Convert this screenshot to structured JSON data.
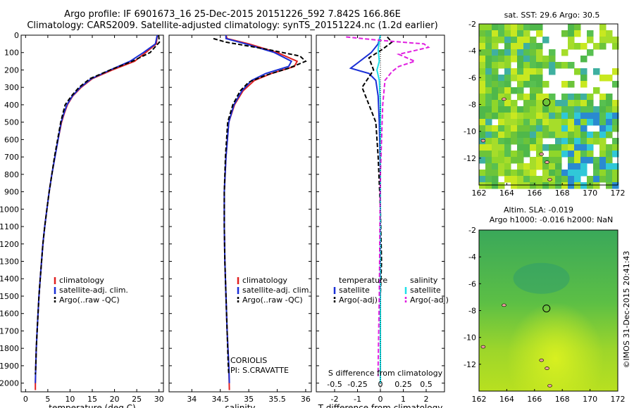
{
  "titles": {
    "line1": "Argo profile: IF 6901673_16 25-Dec-2015 20151226_592 7.842S 166.86E",
    "line2": "Climatology: CARS2009. Satellite-adjusted climatology: synTS_20151224.nc (1.2d earlier)"
  },
  "colors": {
    "climatology": "#e02020",
    "satellite": "#1a2fd6",
    "argo": "#000000",
    "sal_satellite": "#20e0e8",
    "sal_argo": "#e020e0"
  },
  "chart_data": [
    {
      "type": "line",
      "xlabel": "temperature (deg C)",
      "ylim": [
        2050,
        0
      ],
      "xlim": [
        -1,
        31
      ],
      "xticks": [
        0,
        5,
        10,
        15,
        20,
        25,
        30
      ],
      "yticks": [
        0,
        100,
        200,
        300,
        400,
        500,
        600,
        700,
        800,
        900,
        1000,
        1100,
        1200,
        1300,
        1400,
        1500,
        1600,
        1700,
        1800,
        1900,
        2000
      ],
      "legend": [
        "climatology",
        "satellite-adj. clim.",
        "Argo(..raw -QC)"
      ],
      "series": [
        {
          "name": "climatology",
          "color": "#e02020",
          "dash": "",
          "points": [
            [
              29.6,
              0
            ],
            [
              29.4,
              50
            ],
            [
              27.0,
              100
            ],
            [
              24.5,
              150
            ],
            [
              19.5,
              200
            ],
            [
              15.0,
              250
            ],
            [
              12.5,
              300
            ],
            [
              10.6,
              350
            ],
            [
              9.4,
              400
            ],
            [
              8.7,
              450
            ],
            [
              8.1,
              500
            ],
            [
              7.3,
              600
            ],
            [
              6.6,
              700
            ],
            [
              5.9,
              800
            ],
            [
              5.3,
              900
            ],
            [
              4.8,
              1000
            ],
            [
              4.3,
              1100
            ],
            [
              3.9,
              1200
            ],
            [
              3.6,
              1300
            ],
            [
              3.3,
              1400
            ],
            [
              3.0,
              1500
            ],
            [
              2.8,
              1600
            ],
            [
              2.6,
              1700
            ],
            [
              2.4,
              1800
            ],
            [
              2.3,
              1900
            ],
            [
              2.2,
              2000
            ],
            [
              2.2,
              2040
            ]
          ]
        },
        {
          "name": "satellite",
          "color": "#1a2fd6",
          "dash": "",
          "points": [
            [
              29.6,
              0
            ],
            [
              29.2,
              50
            ],
            [
              26.5,
              100
            ],
            [
              23.5,
              150
            ],
            [
              19.0,
              200
            ],
            [
              14.8,
              250
            ],
            [
              12.3,
              300
            ],
            [
              10.5,
              350
            ],
            [
              9.3,
              400
            ],
            [
              8.6,
              450
            ],
            [
              8.0,
              500
            ],
            [
              7.3,
              600
            ],
            [
              6.6,
              700
            ],
            [
              5.9,
              800
            ],
            [
              5.3,
              900
            ],
            [
              4.8,
              1000
            ],
            [
              4.3,
              1100
            ],
            [
              3.9,
              1200
            ],
            [
              3.6,
              1300
            ],
            [
              3.3,
              1400
            ],
            [
              3.0,
              1500
            ],
            [
              2.8,
              1600
            ],
            [
              2.6,
              1700
            ],
            [
              2.4,
              1800
            ],
            [
              2.3,
              1900
            ],
            [
              2.2,
              2000
            ]
          ]
        },
        {
          "name": "argo",
          "color": "#000000",
          "dash": "6,3",
          "points": [
            [
              29.9,
              0
            ],
            [
              30.1,
              40
            ],
            [
              28.0,
              100
            ],
            [
              24.0,
              150
            ],
            [
              19.0,
              200
            ],
            [
              14.5,
              250
            ],
            [
              12.0,
              300
            ],
            [
              10.3,
              350
            ],
            [
              8.9,
              400
            ],
            [
              8.4,
              450
            ],
            [
              7.9,
              500
            ],
            [
              7.2,
              600
            ],
            [
              6.5,
              700
            ],
            [
              5.9,
              800
            ],
            [
              5.3,
              900
            ],
            [
              4.8,
              1000
            ],
            [
              4.3,
              1100
            ],
            [
              3.9,
              1200
            ],
            [
              3.6,
              1300
            ],
            [
              3.3,
              1400
            ],
            [
              3.0,
              1500
            ],
            [
              2.8,
              1600
            ],
            [
              2.6,
              1700
            ],
            [
              2.4,
              1800
            ],
            [
              2.3,
              1900
            ],
            [
              2.2,
              1950
            ]
          ]
        }
      ]
    },
    {
      "type": "line",
      "xlabel": "salinity",
      "ylim": [
        2050,
        0
      ],
      "xlim": [
        33.6,
        36.1
      ],
      "xticks": [
        34,
        34.5,
        35,
        35.5,
        36
      ],
      "legend": [
        "climatology",
        "satellite-adj. clim.",
        "Argo(..raw -QC)"
      ],
      "annotation": [
        "CORIOLIS",
        "PI: S.CRAVATTE"
      ],
      "series": [
        {
          "name": "climatology",
          "color": "#e02020",
          "dash": "",
          "points": [
            [
              34.6,
              0
            ],
            [
              34.62,
              20
            ],
            [
              35.0,
              50
            ],
            [
              35.5,
              100
            ],
            [
              35.85,
              150
            ],
            [
              35.8,
              180
            ],
            [
              35.4,
              220
            ],
            [
              35.1,
              260
            ],
            [
              34.9,
              320
            ],
            [
              34.75,
              400
            ],
            [
              34.65,
              500
            ],
            [
              34.6,
              700
            ],
            [
              34.57,
              900
            ],
            [
              34.57,
              1100
            ],
            [
              34.58,
              1300
            ],
            [
              34.6,
              1500
            ],
            [
              34.62,
              1700
            ],
            [
              34.65,
              1900
            ],
            [
              34.66,
              2040
            ]
          ]
        },
        {
          "name": "satellite",
          "color": "#1a2fd6",
          "dash": "",
          "points": [
            [
              34.6,
              0
            ],
            [
              34.6,
              20
            ],
            [
              34.95,
              50
            ],
            [
              35.45,
              100
            ],
            [
              35.75,
              150
            ],
            [
              35.7,
              180
            ],
            [
              35.3,
              220
            ],
            [
              35.05,
              260
            ],
            [
              34.88,
              320
            ],
            [
              34.74,
              400
            ],
            [
              34.65,
              500
            ],
            [
              34.6,
              700
            ],
            [
              34.57,
              900
            ],
            [
              34.57,
              1100
            ],
            [
              34.58,
              1300
            ],
            [
              34.6,
              1500
            ],
            [
              34.62,
              1700
            ],
            [
              34.65,
              1900
            ],
            [
              34.66,
              2000
            ]
          ]
        },
        {
          "name": "argo",
          "color": "#000000",
          "dash": "6,3",
          "points": [
            [
              34.38,
              20
            ],
            [
              34.6,
              40
            ],
            [
              35.3,
              80
            ],
            [
              35.9,
              120
            ],
            [
              36.0,
              150
            ],
            [
              35.7,
              190
            ],
            [
              35.3,
              230
            ],
            [
              35.0,
              270
            ],
            [
              34.85,
              320
            ],
            [
              34.72,
              400
            ],
            [
              34.63,
              500
            ],
            [
              34.59,
              700
            ],
            [
              34.57,
              900
            ],
            [
              34.57,
              1100
            ],
            [
              34.58,
              1300
            ],
            [
              34.6,
              1500
            ],
            [
              34.62,
              1700
            ],
            [
              34.64,
              1900
            ],
            [
              34.65,
              1950
            ]
          ]
        }
      ]
    },
    {
      "type": "line",
      "xlabel": "T difference from climatology",
      "xlabel_top": "S difference from climatology",
      "ylim": [
        2050,
        0
      ],
      "xlim": [
        -2.8,
        2.8
      ],
      "xticks": [
        -2,
        -1,
        0,
        1,
        2
      ],
      "xticks_top": [
        -0.5,
        -0.25,
        0,
        0.25,
        0.5
      ],
      "xtick_top_labels": [
        "-0.5",
        "-0.25",
        "0",
        "0.25",
        "0.5"
      ],
      "legend_temperature": [
        "temperature",
        "satellite",
        "Argo(-adj)"
      ],
      "legend_salinity": [
        "salinity",
        "satellite",
        "Argo(-adj)"
      ],
      "series": [
        {
          "name": "T satellite",
          "color": "#1a2fd6",
          "dash": "",
          "points": [
            [
              0,
              0
            ],
            [
              -0.1,
              50
            ],
            [
              -0.4,
              100
            ],
            [
              -1.3,
              190
            ],
            [
              -0.5,
              220
            ],
            [
              -0.2,
              260
            ],
            [
              -0.1,
              350
            ],
            [
              -0.05,
              500
            ],
            [
              0,
              800
            ],
            [
              0,
              1200
            ],
            [
              0,
              2000
            ]
          ]
        },
        {
          "name": "T Argo",
          "color": "#000000",
          "dash": "6,3",
          "points": [
            [
              0.3,
              10
            ],
            [
              0.5,
              40
            ],
            [
              0.1,
              80
            ],
            [
              -0.5,
              130
            ],
            [
              -0.3,
              200
            ],
            [
              -0.8,
              300
            ],
            [
              -0.5,
              400
            ],
            [
              -0.2,
              500
            ],
            [
              -0.1,
              700
            ],
            [
              0,
              1000
            ],
            [
              0.05,
              1300
            ],
            [
              0,
              1500
            ],
            [
              0,
              1950
            ]
          ]
        },
        {
          "name": "S satellite",
          "color": "#20e0e8",
          "dash": "",
          "points": [
            [
              0,
              0
            ],
            [
              -0.1,
              80
            ],
            [
              -0.05,
              150
            ],
            [
              -0.15,
              200
            ],
            [
              -0.05,
              260
            ],
            [
              0,
              400
            ],
            [
              0,
              800
            ],
            [
              0,
              1400
            ],
            [
              0,
              2000
            ]
          ]
        },
        {
          "name": "S Argo",
          "color": "#e020e0",
          "dash": "6,3",
          "points": [
            [
              -1.5,
              10
            ],
            [
              0.0,
              30
            ],
            [
              1.9,
              50
            ],
            [
              2.1,
              70
            ],
            [
              0.8,
              110
            ],
            [
              1.5,
              150
            ],
            [
              0.8,
              180
            ],
            [
              0.5,
              210
            ],
            [
              0.2,
              260
            ],
            [
              0.1,
              400
            ],
            [
              0,
              800
            ],
            [
              -0.05,
              1500
            ],
            [
              -0.1,
              1900
            ],
            [
              -0.1,
              1960
            ]
          ]
        }
      ]
    },
    {
      "type": "heatmap",
      "title": "sat. SST: 29.6 Argo: 30.5",
      "xlim": [
        162,
        172
      ],
      "ylim": [
        -14,
        -2
      ],
      "xticks": [
        162,
        164,
        166,
        168,
        170,
        172
      ],
      "yticks": [
        -2,
        -4,
        -6,
        -8,
        -10,
        -12
      ],
      "marker": [
        166.86,
        -7.842
      ]
    },
    {
      "type": "heatmap",
      "title_line1": "Altim. SLA: -0.019",
      "title_line2": "Argo h1000: -0.016 h2000: NaN",
      "xlim": [
        162,
        172
      ],
      "ylim": [
        -14,
        -2
      ],
      "xticks": [
        162,
        164,
        166,
        168,
        170,
        172
      ],
      "yticks": [
        -2,
        -4,
        -6,
        -8,
        -10,
        -12
      ],
      "marker": [
        166.86,
        -7.842
      ],
      "side_label": "©IMOS 31-Dec-2015 20:41:43"
    }
  ]
}
